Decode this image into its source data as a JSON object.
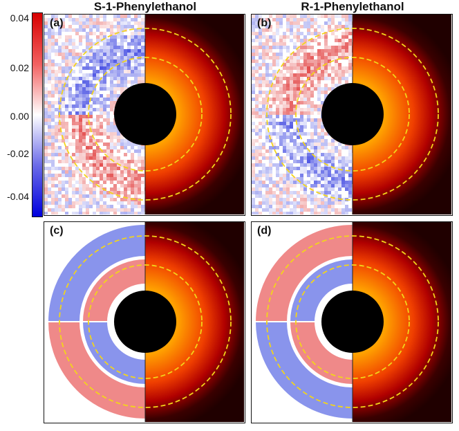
{
  "titles": {
    "left": "S-1-Phenylethanol",
    "right": "R-1-Phenylethanol"
  },
  "panels": [
    {
      "label": "(a)",
      "kind": "experimental",
      "chirality": "S"
    },
    {
      "label": "(b)",
      "kind": "experimental",
      "chirality": "R"
    },
    {
      "label": "(c)",
      "kind": "simulated",
      "chirality": "S"
    },
    {
      "label": "(d)",
      "kind": "simulated",
      "chirality": "R"
    }
  ],
  "colorbar": {
    "ticks": [
      "0.04",
      "0.02",
      "0.00",
      "-0.02",
      "-0.04"
    ],
    "colors": {
      "max": "#d70000",
      "mid": "#ffffff",
      "min": "#0000dd"
    }
  },
  "colors": {
    "ring": "#f2d51a",
    "hot_outer": "#2a0000",
    "hot_inner": "#ffcc00"
  }
}
